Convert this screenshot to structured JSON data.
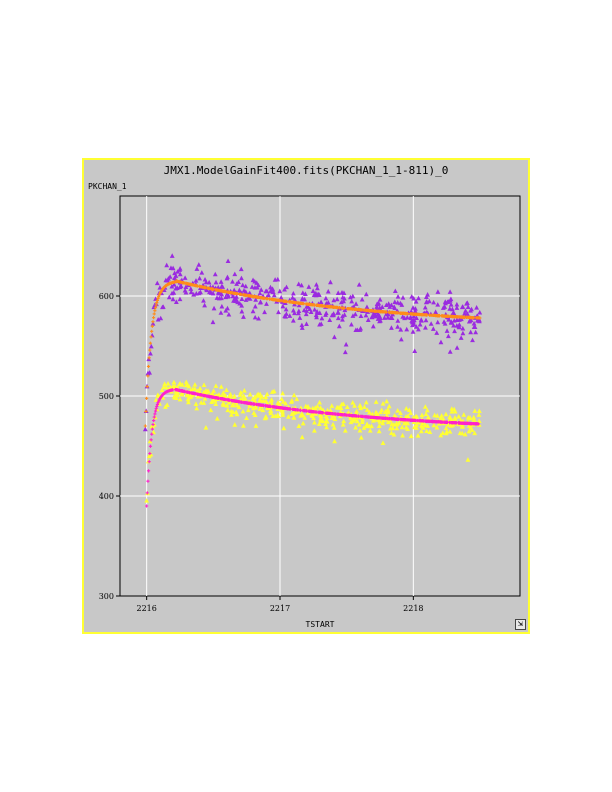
{
  "window": {
    "resize_icon": "resize-arrow-icon",
    "resize_glyph": "⇲"
  },
  "chart_data": {
    "type": "scatter",
    "title": "JMX1.ModelGainFit400.fits(PKCHAN_1_1-811)_0",
    "xlabel": "TSTART",
    "ylabel": "PKCHAN_1",
    "xlim": [
      2215.8,
      2218.8
    ],
    "ylim": [
      300,
      700
    ],
    "xticks": [
      2216,
      2217,
      2218
    ],
    "yticks": [
      300,
      400,
      500,
      600
    ],
    "grid": true,
    "colors": {
      "background": "#c8c8c8",
      "grid": "#ffffff",
      "border": "#ffff33",
      "purple": "#9a2be0",
      "orange": "#ff8c1a",
      "yellow": "#ffff33",
      "magenta": "#ff22cc"
    },
    "series": [
      {
        "marker": "triangle",
        "color": "#9a2be0",
        "model": {
          "start": 2215.99,
          "base": 470,
          "peak": 615,
          "tpeak": 2216.22,
          "end": 578,
          "tend": 2218.5,
          "rise": 0.045
        },
        "x_range": [
          2215.99,
          2218.5
        ],
        "count": 520,
        "scatter": 18
      },
      {
        "marker": "plus",
        "color": "#ff8c1a",
        "model": {
          "start": 2215.99,
          "base": 470,
          "peak": 615,
          "tpeak": 2216.22,
          "end": 578,
          "tend": 2218.5,
          "rise": 0.045
        },
        "x_range": [
          2215.99,
          2218.5
        ],
        "count": 700,
        "scatter": 0
      },
      {
        "marker": "triangle",
        "color": "#ffff33",
        "model": {
          "start": 2216.0,
          "base": 390,
          "peak": 507,
          "tpeak": 2216.2,
          "end": 472,
          "tend": 2218.5,
          "rise": 0.04
        },
        "x_range": [
          2216.0,
          2218.5
        ],
        "count": 520,
        "scatter": 12
      },
      {
        "marker": "plus",
        "color": "#ff22cc",
        "model": {
          "start": 2216.0,
          "base": 390,
          "peak": 507,
          "tpeak": 2216.2,
          "end": 472,
          "tend": 2218.5,
          "rise": 0.04
        },
        "x_range": [
          2216.0,
          2218.5
        ],
        "count": 700,
        "scatter": 0
      }
    ]
  }
}
